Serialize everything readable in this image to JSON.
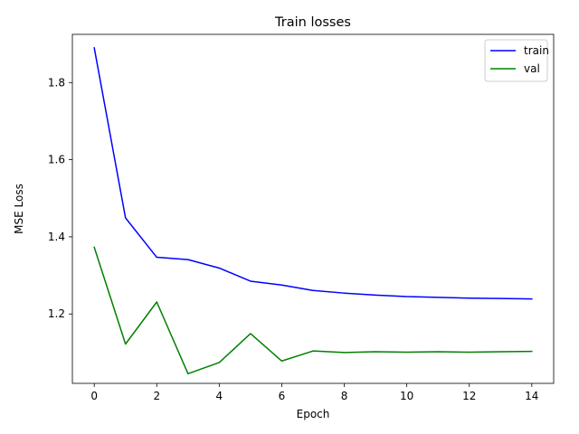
{
  "chart_data": {
    "type": "line",
    "title": "Train losses",
    "xlabel": "Epoch",
    "ylabel": "MSE Loss",
    "xlim": [
      -0.7,
      14.7
    ],
    "ylim": [
      1.02,
      1.925
    ],
    "xticks": [
      0,
      2,
      4,
      6,
      8,
      10,
      12,
      14
    ],
    "yticks": [
      1.2,
      1.4,
      1.6,
      1.8
    ],
    "grid": false,
    "legend_position": "top-right",
    "x": [
      0,
      1,
      2,
      3,
      4,
      5,
      6,
      7,
      8,
      9,
      10,
      11,
      12,
      13,
      14
    ],
    "series": [
      {
        "name": "train",
        "color": "#0000ff",
        "values": [
          1.89,
          1.449,
          1.347,
          1.341,
          1.319,
          1.285,
          1.275,
          1.261,
          1.254,
          1.249,
          1.245,
          1.243,
          1.241,
          1.24,
          1.239
        ]
      },
      {
        "name": "val",
        "color": "#008000",
        "values": [
          1.373,
          1.122,
          1.231,
          1.045,
          1.074,
          1.149,
          1.078,
          1.104,
          1.1,
          1.102,
          1.101,
          1.102,
          1.101,
          1.102,
          1.103
        ]
      }
    ]
  }
}
